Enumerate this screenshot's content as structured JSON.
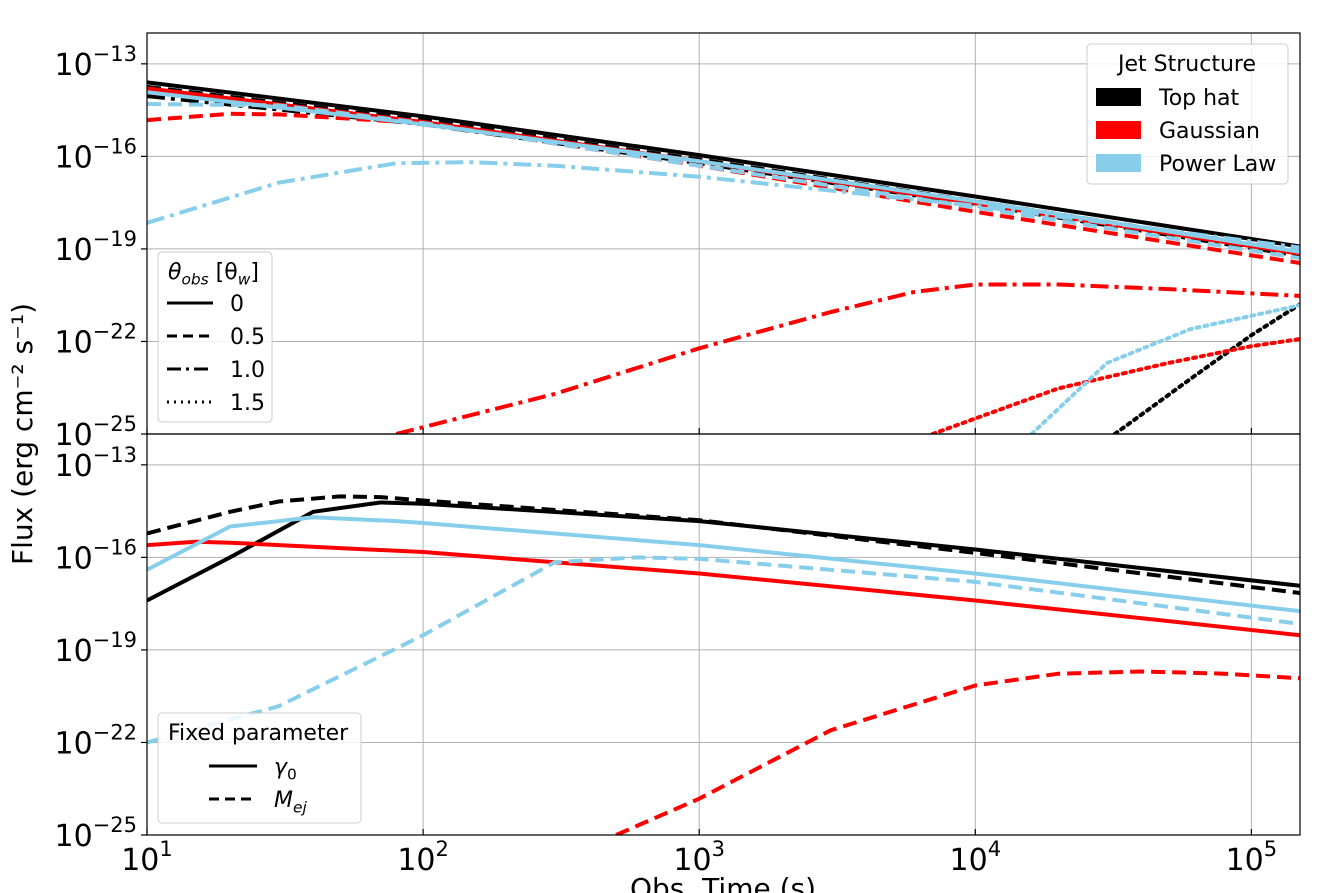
{
  "chart_data": {
    "type": "line",
    "ylabel": "Flux (erg cm⁻² s⁻¹)",
    "xlabel": "Obs. Time (s)",
    "xscale": "log",
    "yscale": "log",
    "xlim": [
      10,
      150000
    ],
    "x_ticks": [
      {
        "value": 10,
        "base": "10",
        "exp": "1"
      },
      {
        "value": 100,
        "base": "10",
        "exp": "2"
      },
      {
        "value": 1000,
        "base": "10",
        "exp": "3"
      },
      {
        "value": 10000,
        "base": "10",
        "exp": "4"
      },
      {
        "value": 100000,
        "base": "10",
        "exp": "5"
      }
    ],
    "colors": {
      "Top hat": "#000000",
      "Gaussian": "#ff0000",
      "Power Law": "#87ceeb"
    },
    "panels": [
      {
        "name": "top",
        "ylim": [
          1e-25,
          1e-12
        ],
        "y_ticks": [
          {
            "value": 1e-13,
            "base": "10",
            "exp": "−13"
          },
          {
            "value": 1e-16,
            "base": "10",
            "exp": "−16"
          },
          {
            "value": 1e-19,
            "base": "10",
            "exp": "−19"
          },
          {
            "value": 1e-22,
            "base": "10",
            "exp": "−22"
          },
          {
            "value": 1e-25,
            "base": "10",
            "exp": "−25"
          }
        ],
        "legends": [
          {
            "title": "Jet Structure",
            "position": "upper right",
            "kind": "patch",
            "entries": [
              {
                "label": "Top hat",
                "color": "#000000"
              },
              {
                "label": "Gaussian",
                "color": "#ff0000"
              },
              {
                "label": "Power Law",
                "color": "#87ceeb"
              }
            ]
          },
          {
            "title_main": "θ",
            "title_sub": "obs",
            "title_mid": " [θ",
            "title_sub2": "w",
            "title_end": "]",
            "position": "lower left",
            "kind": "line",
            "entries": [
              {
                "label": "0",
                "dash": "solid"
              },
              {
                "label": "0.5",
                "dash": "dashed"
              },
              {
                "label": "1.0",
                "dash": "dashdot"
              },
              {
                "label": "1.5",
                "dash": "dotted"
              }
            ]
          }
        ],
        "series": [
          {
            "name": "Top hat θobs=0",
            "color": "#000000",
            "dash": "solid",
            "x": [
              10,
              100,
              1000,
              10000,
              150000
            ],
            "y": [
              2.5e-14,
              2e-15,
              1.1e-16,
              5e-18,
              1.2e-19
            ]
          },
          {
            "name": "Top hat θobs=0.5",
            "color": "#000000",
            "dash": "dashed",
            "x": [
              10,
              100,
              1000,
              10000,
              150000
            ],
            "y": [
              1.8e-14,
              1.5e-15,
              8e-17,
              3.5e-18,
              8e-20
            ]
          },
          {
            "name": "Top hat θobs=1.0",
            "color": "#000000",
            "dash": "dashdot",
            "x": [
              10,
              100,
              1000,
              10000,
              150000
            ],
            "y": [
              9e-15,
              1.1e-15,
              6e-17,
              2.8e-18,
              6e-20
            ]
          },
          {
            "name": "Top hat θobs=1.5",
            "color": "#000000",
            "dash": "dotted",
            "x": [
              32000,
              60000,
              100000,
              150000
            ],
            "y": [
              1e-25,
              6e-24,
              1.6e-22,
              1.6e-21
            ]
          },
          {
            "name": "Gaussian θobs=0",
            "color": "#ff0000",
            "dash": "solid",
            "x": [
              10,
              100,
              1000,
              10000,
              150000
            ],
            "y": [
              1.6e-14,
              1.3e-15,
              7e-17,
              3e-18,
              7e-20
            ]
          },
          {
            "name": "Gaussian θobs=0.5",
            "color": "#ff0000",
            "dash": "dashed",
            "x": [
              10,
              20,
              30,
              100,
              1000,
              10000,
              150000
            ],
            "y": [
              1.5e-15,
              2.4e-15,
              2.3e-15,
              1.2e-15,
              5e-17,
              1.6e-18,
              3.5e-20
            ]
          },
          {
            "name": "Gaussian θobs=1.0",
            "color": "#ff0000",
            "dash": "dashdot",
            "x": [
              80,
              300,
              1000,
              3000,
              6000,
              10000,
              20000,
              50000,
              150000
            ],
            "y": [
              1e-25,
              2e-24,
              6e-23,
              9e-22,
              4e-21,
              7e-21,
              7e-21,
              5e-21,
              3e-21
            ]
          },
          {
            "name": "Gaussian θobs=1.5",
            "color": "#ff0000",
            "dash": "dotted",
            "x": [
              7000,
              20000,
              50000,
              100000,
              150000
            ],
            "y": [
              1e-25,
              3e-24,
              2e-23,
              7e-23,
              1.2e-22
            ]
          },
          {
            "name": "Power Law θobs=0",
            "color": "#87ceeb",
            "dash": "solid",
            "x": [
              10,
              100,
              1000,
              10000,
              150000
            ],
            "y": [
              1.2e-14,
              1.1e-15,
              7e-17,
              3.5e-18,
              8e-20
            ]
          },
          {
            "name": "Power Law θobs=0.5",
            "color": "#87ceeb",
            "dash": "dashed",
            "x": [
              10,
              30,
              100,
              1000,
              10000,
              150000
            ],
            "y": [
              5e-15,
              4.5e-15,
              1.2e-15,
              5e-17,
              2.2e-18,
              5e-20
            ]
          },
          {
            "name": "Power Law θobs=1.0",
            "color": "#87ceeb",
            "dash": "dashdot",
            "x": [
              10,
              30,
              80,
              150,
              300,
              1000,
              10000,
              150000
            ],
            "y": [
              7e-19,
              1.4e-17,
              6e-17,
              6.5e-17,
              5e-17,
              2.2e-17,
              2.5e-18,
              1.1e-19
            ]
          },
          {
            "name": "Power Law θobs=1.5",
            "color": "#87ceeb",
            "dash": "dotted",
            "x": [
              16000,
              30000,
              60000,
              150000
            ],
            "y": [
              1e-25,
              2e-23,
              2.5e-22,
              1.5e-21
            ]
          }
        ]
      },
      {
        "name": "bottom",
        "ylim": [
          1e-25,
          1e-12
        ],
        "y_ticks": [
          {
            "value": 1e-13,
            "base": "10",
            "exp": "−13"
          },
          {
            "value": 1e-16,
            "base": "10",
            "exp": "−16"
          },
          {
            "value": 1e-19,
            "base": "10",
            "exp": "−19"
          },
          {
            "value": 1e-22,
            "base": "10",
            "exp": "−22"
          },
          {
            "value": 1e-25,
            "base": "10",
            "exp": "−25"
          }
        ],
        "legends": [
          {
            "title": "Fixed parameter",
            "position": "lower left",
            "kind": "line",
            "entries": [
              {
                "label_main": "γ",
                "label_sub": "0",
                "dash": "solid"
              },
              {
                "label_main": "M",
                "label_sub": "ej",
                "dash": "dashed"
              }
            ]
          }
        ],
        "series": [
          {
            "name": "Top hat γ0",
            "color": "#000000",
            "dash": "solid",
            "x": [
              10,
              20,
              40,
              70,
              100,
              1000,
              10000,
              150000
            ],
            "y": [
              4e-18,
              1e-16,
              3e-15,
              6e-15,
              5.5e-15,
              1.5e-15,
              1.8e-16,
              1.2e-17
            ]
          },
          {
            "name": "Top hat Mej",
            "color": "#000000",
            "dash": "dashed",
            "x": [
              10,
              20,
              30,
              50,
              70,
              100,
              1000,
              10000,
              150000
            ],
            "y": [
              6e-16,
              3e-15,
              6.5e-15,
              9.5e-15,
              9e-15,
              7e-15,
              1.6e-15,
              1.4e-16,
              7e-18
            ]
          },
          {
            "name": "Gaussian γ0",
            "color": "#ff0000",
            "dash": "solid",
            "x": [
              10,
              15,
              20,
              50,
              100,
              1000,
              10000,
              150000
            ],
            "y": [
              2.5e-16,
              3.2e-16,
              3e-16,
              2e-16,
              1.5e-16,
              3e-17,
              4e-18,
              3e-19
            ]
          },
          {
            "name": "Gaussian Mej",
            "color": "#ff0000",
            "dash": "dashed",
            "x": [
              500,
              1000,
              3000,
              10000,
              20000,
              40000,
              80000,
              150000
            ],
            "y": [
              1e-25,
              1.5e-24,
              2.5e-22,
              7e-21,
              1.7e-20,
              2e-20,
              1.7e-20,
              1.2e-20
            ]
          },
          {
            "name": "Power Law γ0",
            "color": "#87ceeb",
            "dash": "solid",
            "x": [
              10,
              20,
              40,
              80,
              100,
              1000,
              10000,
              150000
            ],
            "y": [
              4e-17,
              1e-15,
              2e-15,
              1.5e-15,
              1.3e-15,
              2.5e-16,
              3e-17,
              1.8e-18
            ]
          },
          {
            "name": "Power Law Mej",
            "color": "#87ceeb",
            "dash": "dashed",
            "x": [
              10,
              30,
              100,
              300,
              600,
              1000,
              10000,
              150000
            ],
            "y": [
              1e-22,
              1.5e-21,
              3e-19,
              7e-17,
              1e-16,
              9e-17,
              1.6e-17,
              7e-19
            ]
          }
        ]
      }
    ]
  }
}
